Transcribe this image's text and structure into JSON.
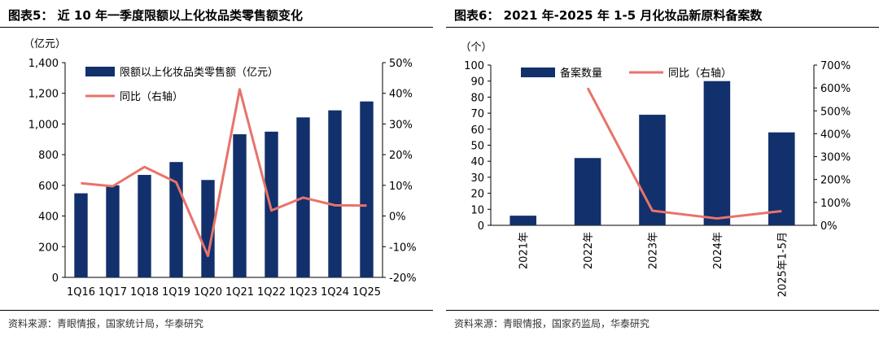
{
  "charts": [
    {
      "figure_title": "图表5： 近 10 年一季度限额以上化妆品类零售额变化",
      "source": "资料来源：青眼情报，国家统计局，华泰研究"
    },
    {
      "figure_title": "图表6： 2021 年-2025 年 1-5 月化妆品新原料备案数",
      "source": "资料来源：青眼情报，国家药监局，华泰研究"
    }
  ],
  "chart_data": [
    {
      "type": "bar",
      "categories": [
        "1Q16",
        "1Q17",
        "1Q18",
        "1Q19",
        "1Q20",
        "1Q21",
        "1Q22",
        "1Q23",
        "1Q24",
        "1Q25"
      ],
      "series": [
        {
          "name": "限额以上化妆品类零售额（亿元）",
          "type": "bar",
          "axis": "left",
          "color": "#12306B",
          "values": [
            548,
            600,
            668,
            752,
            635,
            933,
            950,
            1043,
            1089,
            1147
          ]
        },
        {
          "name": "同比（右轴）",
          "type": "line",
          "axis": "right",
          "color": "#E8736A",
          "values": [
            10.7,
            9.7,
            16,
            11,
            -13,
            41.3,
            1.8,
            6,
            3.5,
            3.4
          ]
        }
      ],
      "left_unit": "（亿元）",
      "ylim": [
        0,
        1400
      ],
      "yticks": [
        "0",
        "200",
        "400",
        "600",
        "800",
        "1,000",
        "1,200",
        "1,400"
      ],
      "y2lim": [
        -20,
        50
      ],
      "y2ticks": [
        "-20%",
        "-10%",
        "0%",
        "10%",
        "20%",
        "30%",
        "40%",
        "50%"
      ],
      "legend_position": "top-left",
      "grid": false
    },
    {
      "type": "bar",
      "categories": [
        "2021年",
        "2022年",
        "2023年",
        "2024年",
        "2025年1-5月"
      ],
      "series": [
        {
          "name": "备案数量",
          "type": "bar",
          "axis": "left",
          "color": "#12306B",
          "values": [
            6,
            42,
            69,
            90,
            58
          ]
        },
        {
          "name": "同比（右轴）",
          "type": "line",
          "axis": "right",
          "color": "#E8736A",
          "values": [
            null,
            600,
            64,
            30,
            62
          ]
        }
      ],
      "left_unit": "（个）",
      "ylim": [
        0,
        100
      ],
      "yticks": [
        "0",
        "10",
        "20",
        "30",
        "40",
        "50",
        "60",
        "70",
        "80",
        "90",
        "100"
      ],
      "y2lim": [
        0,
        700
      ],
      "y2ticks": [
        "0%",
        "100%",
        "200%",
        "300%",
        "400%",
        "500%",
        "600%",
        "700%"
      ],
      "legend_position": "top",
      "grid": false
    }
  ]
}
